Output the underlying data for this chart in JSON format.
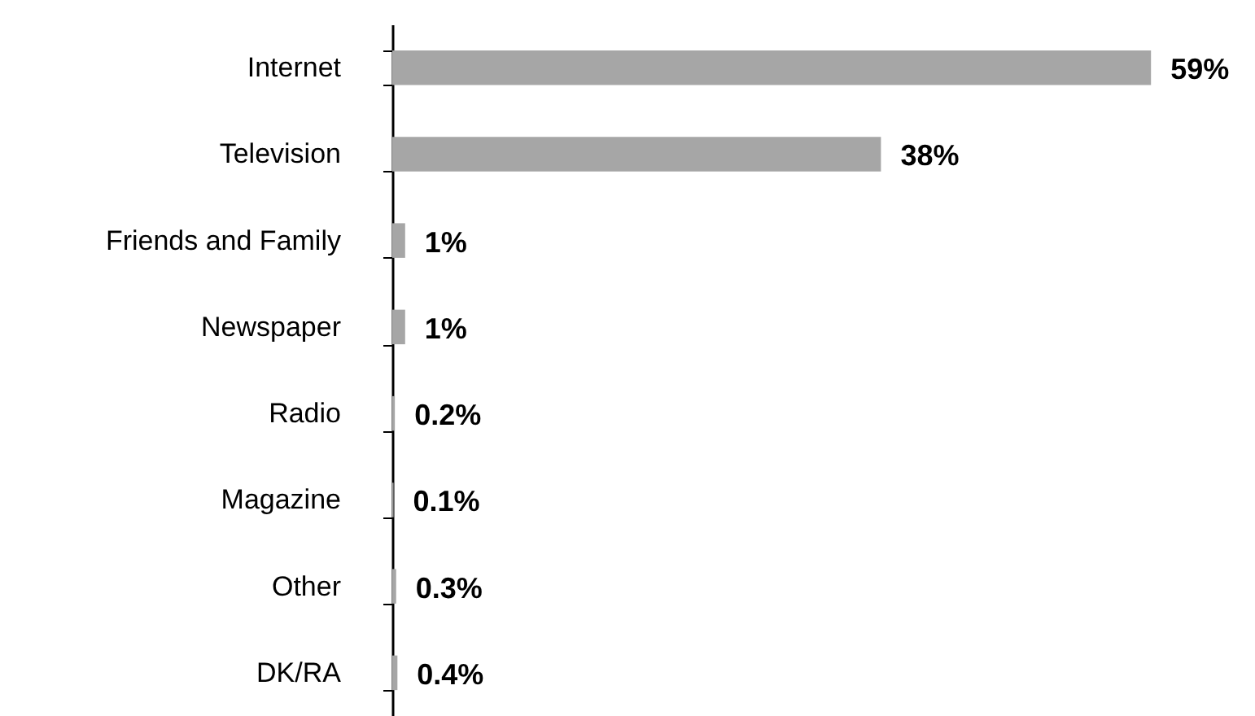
{
  "chart_data": {
    "type": "bar",
    "orientation": "horizontal",
    "categories": [
      "Internet",
      "Television",
      "Friends and Family",
      "Newspaper",
      "Radio",
      "Magazine",
      "Other",
      "DK/RA"
    ],
    "values": [
      59,
      38,
      1,
      1,
      0.2,
      0.1,
      0.3,
      0.4
    ],
    "value_labels": [
      "59%",
      "38%",
      "1%",
      "1%",
      "0.2%",
      "0.1%",
      "0.3%",
      "0.4%"
    ],
    "color": "#a6a6a6",
    "tick_labels": "y"
  }
}
